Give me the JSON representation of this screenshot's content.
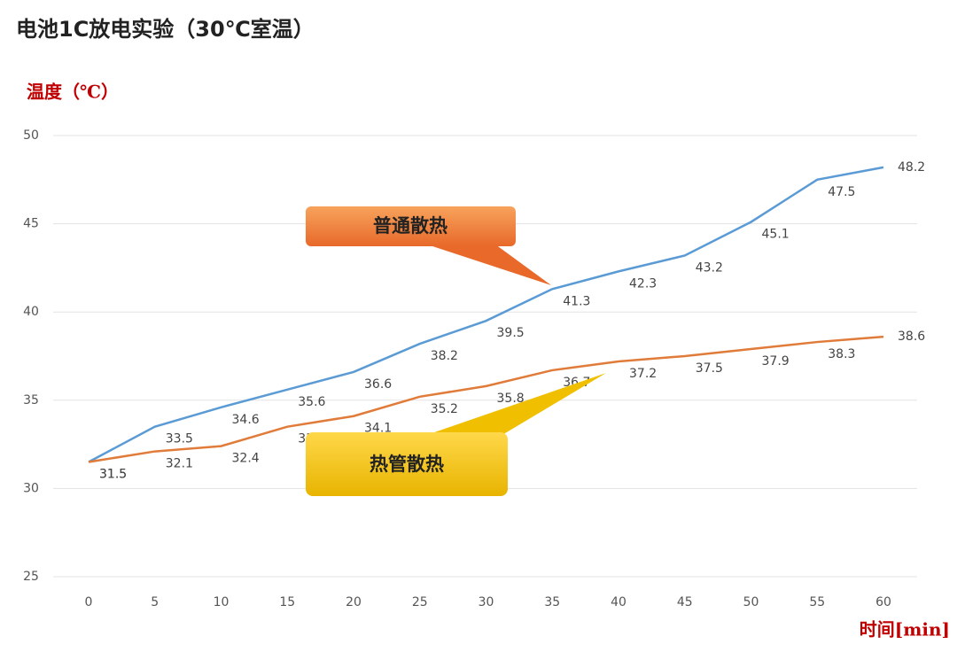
{
  "chart_data": {
    "type": "line",
    "title": "电池1C放电实验（30℃室温）",
    "ylabel": "温度（℃）",
    "xlabel": "时间[min]",
    "x": [
      0,
      5,
      10,
      15,
      20,
      25,
      30,
      35,
      40,
      45,
      50,
      55,
      60
    ],
    "series": [
      {
        "name": "普通散热",
        "color": "#5b9bd5",
        "values": [
          31.5,
          33.5,
          34.6,
          35.6,
          36.6,
          38.2,
          39.5,
          41.3,
          42.3,
          43.2,
          45.1,
          47.5,
          48.2
        ]
      },
      {
        "name": "热管散热",
        "color": "#e07b39",
        "values": [
          31.5,
          32.1,
          32.4,
          33.5,
          34.1,
          35.2,
          35.8,
          36.7,
          37.2,
          37.5,
          37.9,
          38.3,
          38.6
        ]
      }
    ],
    "xlim": [
      0,
      60
    ],
    "xticks": [
      0,
      5,
      10,
      15,
      20,
      25,
      30,
      35,
      40,
      45,
      50,
      55,
      60
    ],
    "ylim": [
      25,
      50
    ],
    "yticks": [
      25,
      30,
      35,
      40,
      45,
      50
    ],
    "grid": true
  }
}
